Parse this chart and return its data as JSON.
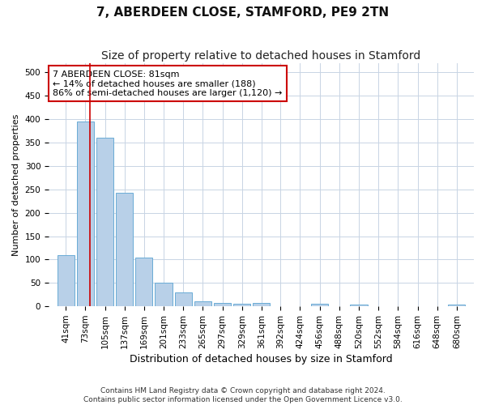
{
  "title": "7, ABERDEEN CLOSE, STAMFORD, PE9 2TN",
  "subtitle": "Size of property relative to detached houses in Stamford",
  "xlabel": "Distribution of detached houses by size in Stamford",
  "ylabel": "Number of detached properties",
  "footer_line1": "Contains HM Land Registry data © Crown copyright and database right 2024.",
  "footer_line2": "Contains public sector information licensed under the Open Government Licence v3.0.",
  "annotation_title": "7 ABERDEEN CLOSE: 81sqm",
  "annotation_line1": "← 14% of detached houses are smaller (188)",
  "annotation_line2": "86% of semi-detached houses are larger (1,120) →",
  "property_size": 81,
  "categories": [
    41,
    73,
    105,
    137,
    169,
    201,
    233,
    265,
    297,
    329,
    361,
    392,
    424,
    456,
    488,
    520,
    552,
    584,
    616,
    648,
    680
  ],
  "values": [
    110,
    395,
    360,
    243,
    105,
    50,
    29,
    10,
    8,
    5,
    8,
    0,
    0,
    5,
    0,
    4,
    0,
    0,
    0,
    0,
    4
  ],
  "bar_color": "#b8d0e8",
  "bar_edge_color": "#6aacd6",
  "red_line_color": "#cc0000",
  "annotation_box_edge_color": "#cc0000",
  "grid_color": "#c8d4e4",
  "background_color": "#ffffff",
  "ylim_max": 520,
  "yticks": [
    0,
    50,
    100,
    150,
    200,
    250,
    300,
    350,
    400,
    450,
    500
  ],
  "title_fontsize": 11,
  "subtitle_fontsize": 10,
  "xlabel_fontsize": 9,
  "ylabel_fontsize": 8,
  "tick_fontsize": 7.5,
  "annotation_fontsize": 8,
  "footer_fontsize": 6.5
}
